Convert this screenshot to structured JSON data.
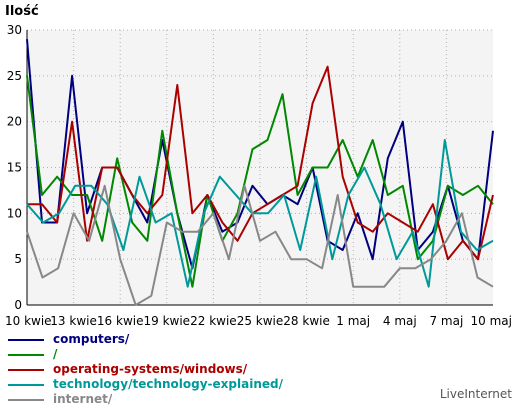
{
  "chart_data": {
    "type": "line",
    "ylabel": "Ilość",
    "ylim": [
      0,
      30
    ],
    "yticks": [
      "0",
      "5",
      "10",
      "15",
      "20",
      "25",
      "30"
    ],
    "xticks": [
      "10 kwie",
      "13 kwie",
      "16 kwie",
      "19 kwie",
      "22 kwie",
      "25 kwie",
      "28 kwie",
      "1 maj",
      "4 maj",
      "7 maj",
      "10 maj"
    ],
    "grid": true,
    "series": [
      {
        "name": "computers/",
        "color": "#00007f",
        "values": [
          29,
          9,
          9,
          25,
          10,
          15,
          15,
          12,
          9,
          18,
          10,
          4,
          12,
          8,
          9,
          13,
          11,
          12,
          11,
          15,
          7,
          6,
          10,
          5,
          16,
          20,
          6,
          8,
          13,
          7,
          5,
          19
        ]
      },
      {
        "name": "/",
        "color": "#008800",
        "values": [
          25,
          12,
          14,
          12,
          12,
          7,
          16,
          9,
          7,
          19,
          10,
          2,
          12,
          7,
          10,
          17,
          18,
          23,
          12,
          15,
          15,
          18,
          14,
          18,
          12,
          13,
          5,
          7,
          13,
          12,
          13,
          11
        ]
      },
      {
        "name": "operating-systems/windows/",
        "color": "#aa0000",
        "values": [
          11,
          11,
          9,
          20,
          7,
          15,
          15,
          12,
          10,
          12,
          24,
          10,
          12,
          9,
          7,
          10,
          11,
          12,
          13,
          22,
          26,
          14,
          9,
          8,
          10,
          9,
          8,
          11,
          5,
          7,
          5,
          12
        ]
      },
      {
        "name": "technology/technology-explained/",
        "color": "#009999",
        "values": [
          11,
          9,
          10,
          13,
          13,
          11,
          6,
          14,
          9,
          10,
          2,
          10,
          14,
          12,
          10,
          10,
          12,
          6,
          14,
          5,
          12,
          15,
          11,
          5,
          8,
          2,
          18,
          8,
          6,
          7
        ]
      },
      {
        "name": "internet/",
        "color": "#888888",
        "values": [
          8,
          3,
          4,
          10,
          7,
          13,
          5,
          0,
          1,
          9,
          8,
          8,
          10,
          5,
          13,
          7,
          8,
          5,
          5,
          4,
          12,
          2,
          2,
          2,
          4,
          4,
          5,
          7,
          10,
          3,
          2
        ]
      }
    ]
  },
  "legend_items": [
    {
      "label": "computers/",
      "color": "#00007f"
    },
    {
      "label": "/",
      "color": "#008800"
    },
    {
      "label": "operating-systems/windows/",
      "color": "#aa0000"
    },
    {
      "label": "technology/technology-explained/",
      "color": "#009999"
    },
    {
      "label": "internet/",
      "color": "#888888"
    }
  ],
  "brand": "LiveInternet"
}
